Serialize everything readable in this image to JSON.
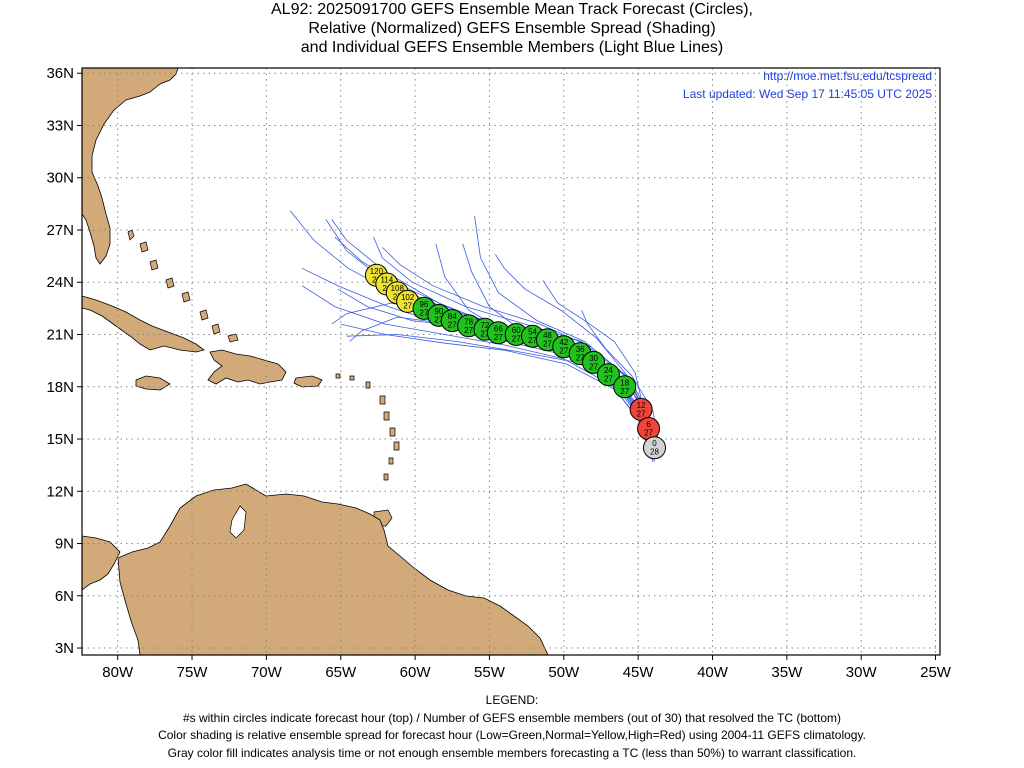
{
  "title": {
    "line1": "AL92: 2025091700 GEFS Ensemble Mean Track Forecast (Circles),",
    "line2": "Relative (Normalized) GEFS Ensemble Spread (Shading)",
    "line3": "and Individual GEFS Ensemble Members (Light Blue Lines)"
  },
  "credit": {
    "url": "http://moe.met.fsu.edu/tcspread",
    "updated": "Last updated: Wed Sep 17 11:45:05 UTC 2025"
  },
  "axes": {
    "lon_labels": [
      "80W",
      "75W",
      "70W",
      "65W",
      "60W",
      "55W",
      "50W",
      "45W",
      "40W",
      "35W",
      "30W",
      "25W"
    ],
    "lon_values": [
      -80,
      -75,
      -70,
      -65,
      -60,
      -55,
      -50,
      -45,
      -40,
      -35,
      -30,
      -25
    ],
    "lat_labels": [
      "36N",
      "33N",
      "30N",
      "27N",
      "24N",
      "21N",
      "18N",
      "15N",
      "12N",
      "9N",
      "6N",
      "3N"
    ],
    "lat_values": [
      36,
      33,
      30,
      27,
      24,
      21,
      18,
      15,
      12,
      9,
      6,
      3
    ],
    "lon_range": [
      -82.4,
      -24.7
    ],
    "lat_range": [
      2.6,
      36.3
    ],
    "grid": "dotted"
  },
  "colors": {
    "land": "#d2aa7a",
    "coast": "#000000",
    "member_line": "#3a5de0",
    "low": "#22c21e",
    "normal": "#ece333",
    "high": "#ef4538",
    "analysis": "#d3d3d3",
    "credit": "#1f3fd8"
  },
  "chart_data": {
    "type": "scatter",
    "track": [
      {
        "hour": "0",
        "members": "28",
        "lon": -43.9,
        "lat": 14.5,
        "spread": "analysis"
      },
      {
        "hour": "6",
        "members": "27",
        "lon": -44.3,
        "lat": 15.6,
        "spread": "high"
      },
      {
        "hour": "12",
        "members": "27",
        "lon": -44.8,
        "lat": 16.7,
        "spread": "high"
      },
      {
        "hour": "18",
        "members": "27",
        "lon": -45.9,
        "lat": 18.0,
        "spread": "low"
      },
      {
        "hour": "24",
        "members": "27",
        "lon": -47.0,
        "lat": 18.7,
        "spread": "low"
      },
      {
        "hour": "30",
        "members": "27",
        "lon": -48.0,
        "lat": 19.4,
        "spread": "low"
      },
      {
        "hour": "36",
        "members": "27",
        "lon": -48.9,
        "lat": 19.9,
        "spread": "low"
      },
      {
        "hour": "42",
        "members": "27",
        "lon": -50.0,
        "lat": 20.3,
        "spread": "low"
      },
      {
        "hour": "48",
        "members": "27",
        "lon": -51.1,
        "lat": 20.7,
        "spread": "low"
      },
      {
        "hour": "54",
        "members": "27",
        "lon": -52.1,
        "lat": 20.9,
        "spread": "low"
      },
      {
        "hour": "60",
        "members": "27",
        "lon": -53.2,
        "lat": 21.0,
        "spread": "low"
      },
      {
        "hour": "66",
        "members": "27",
        "lon": -54.4,
        "lat": 21.1,
        "spread": "low"
      },
      {
        "hour": "72",
        "members": "27",
        "lon": -55.3,
        "lat": 21.3,
        "spread": "low"
      },
      {
        "hour": "78",
        "members": "27",
        "lon": -56.4,
        "lat": 21.5,
        "spread": "low"
      },
      {
        "hour": "84",
        "members": "27",
        "lon": -57.5,
        "lat": 21.8,
        "spread": "low"
      },
      {
        "hour": "90",
        "members": "27",
        "lon": -58.4,
        "lat": 22.1,
        "spread": "low"
      },
      {
        "hour": "96",
        "members": "27",
        "lon": -59.4,
        "lat": 22.5,
        "spread": "low"
      },
      {
        "hour": "102",
        "members": "27",
        "lon": -60.5,
        "lat": 22.9,
        "spread": "normal"
      },
      {
        "hour": "108",
        "members": "27",
        "lon": -61.2,
        "lat": 23.4,
        "spread": "normal"
      },
      {
        "hour": "114",
        "members": "26",
        "lon": -61.9,
        "lat": 23.9,
        "spread": "normal"
      },
      {
        "hour": "120",
        "members": "26",
        "lon": -62.6,
        "lat": 24.4,
        "spread": "normal"
      }
    ],
    "members": [
      [
        [
          -43.9,
          13.7
        ],
        [
          -44.6,
          16.0
        ],
        [
          -46.1,
          18.0
        ],
        [
          -49.0,
          19.8
        ],
        [
          -53.0,
          20.8
        ],
        [
          -57.0,
          21.8
        ],
        [
          -61.0,
          23.2
        ],
        [
          -64.5,
          24.8
        ],
        [
          -66.8,
          26.4
        ],
        [
          -68.4,
          28.1
        ]
      ],
      [
        [
          -43.6,
          14.0
        ],
        [
          -44.3,
          16.4
        ],
        [
          -45.9,
          18.3
        ],
        [
          -48.6,
          20.0
        ],
        [
          -52.6,
          21.0
        ],
        [
          -56.6,
          22.1
        ],
        [
          -60.4,
          23.6
        ],
        [
          -63.6,
          25.2
        ],
        [
          -65.4,
          26.6
        ]
      ],
      [
        [
          -44.1,
          13.9
        ],
        [
          -45.0,
          16.2
        ],
        [
          -46.8,
          18.1
        ],
        [
          -50.0,
          19.6
        ],
        [
          -54.0,
          20.4
        ],
        [
          -58.0,
          21.0
        ],
        [
          -62.0,
          21.6
        ],
        [
          -65.4,
          22.6
        ],
        [
          -67.6,
          23.8
        ]
      ],
      [
        [
          -43.8,
          14.2
        ],
        [
          -44.5,
          16.3
        ],
        [
          -46.0,
          18.0
        ],
        [
          -49.1,
          19.4
        ],
        [
          -53.0,
          20.0
        ],
        [
          -57.2,
          20.6
        ],
        [
          -61.2,
          21.0
        ],
        [
          -64.6,
          20.9
        ]
      ],
      [
        [
          -44.0,
          13.8
        ],
        [
          -44.8,
          16.1
        ],
        [
          -46.4,
          18.2
        ],
        [
          -49.6,
          20.2
        ],
        [
          -52.8,
          21.2
        ],
        [
          -55.0,
          22.6
        ],
        [
          -56.2,
          24.6
        ],
        [
          -56.8,
          26.2
        ]
      ],
      [
        [
          -43.7,
          14.1
        ],
        [
          -44.4,
          16.5
        ],
        [
          -45.8,
          18.6
        ],
        [
          -48.6,
          20.6
        ],
        [
          -51.8,
          21.8
        ],
        [
          -54.4,
          23.4
        ],
        [
          -55.6,
          25.4
        ],
        [
          -56.0,
          27.8
        ]
      ],
      [
        [
          -43.9,
          14.0
        ],
        [
          -44.7,
          16.3
        ],
        [
          -46.5,
          18.3
        ],
        [
          -49.8,
          20.0
        ],
        [
          -53.6,
          21.0
        ],
        [
          -56.4,
          22.4
        ],
        [
          -58.0,
          24.3
        ],
        [
          -58.6,
          26.2
        ]
      ],
      [
        [
          -44.2,
          14.3
        ],
        [
          -44.6,
          16.6
        ],
        [
          -45.2,
          18.8
        ],
        [
          -46.6,
          20.6
        ],
        [
          -48.6,
          21.8
        ],
        [
          -50.4,
          22.8
        ],
        [
          -51.4,
          24.1
        ]
      ],
      [
        [
          -43.5,
          14.2
        ],
        [
          -44.0,
          16.6
        ],
        [
          -45.4,
          18.6
        ],
        [
          -47.2,
          20.2
        ],
        [
          -48.4,
          21.6
        ],
        [
          -48.8,
          22.4
        ]
      ],
      [
        [
          -43.8,
          14.0
        ],
        [
          -44.6,
          16.3
        ],
        [
          -46.3,
          18.2
        ],
        [
          -49.4,
          19.9
        ],
        [
          -53.4,
          21.0
        ],
        [
          -57.4,
          22.0
        ],
        [
          -61.6,
          22.8
        ],
        [
          -64.6,
          22.2
        ],
        [
          -65.6,
          21.6
        ]
      ],
      [
        [
          -44.0,
          14.1
        ],
        [
          -44.9,
          16.4
        ],
        [
          -46.7,
          18.4
        ],
        [
          -50.0,
          20.2
        ],
        [
          -54.2,
          21.4
        ],
        [
          -58.4,
          22.8
        ],
        [
          -62.0,
          24.6
        ],
        [
          -64.6,
          26.4
        ],
        [
          -65.6,
          27.6
        ]
      ],
      [
        [
          -43.9,
          13.9
        ],
        [
          -44.5,
          16.2
        ],
        [
          -46.2,
          18.1
        ],
        [
          -49.4,
          19.7
        ],
        [
          -53.4,
          20.8
        ],
        [
          -57.6,
          21.6
        ],
        [
          -61.2,
          22.0
        ],
        [
          -63.6,
          21.2
        ],
        [
          -64.4,
          20.6
        ]
      ],
      [
        [
          -44.1,
          14.0
        ],
        [
          -44.9,
          16.2
        ],
        [
          -46.6,
          18.2
        ],
        [
          -49.8,
          19.8
        ],
        [
          -53.8,
          20.6
        ],
        [
          -57.8,
          21.5
        ],
        [
          -61.8,
          22.6
        ],
        [
          -65.2,
          23.8
        ],
        [
          -67.6,
          24.8
        ]
      ],
      [
        [
          -43.7,
          14.3
        ],
        [
          -44.3,
          16.5
        ],
        [
          -45.6,
          18.5
        ],
        [
          -48.2,
          20.3
        ],
        [
          -51.6,
          21.6
        ],
        [
          -55.4,
          22.6
        ],
        [
          -58.8,
          23.8
        ],
        [
          -61.0,
          25.0
        ],
        [
          -62.2,
          26.0
        ]
      ],
      [
        [
          -43.8,
          14.1
        ],
        [
          -44.6,
          16.4
        ],
        [
          -46.3,
          18.4
        ],
        [
          -49.6,
          20.3
        ],
        [
          -53.6,
          21.4
        ],
        [
          -57.6,
          22.4
        ],
        [
          -61.6,
          23.8
        ],
        [
          -64.6,
          25.8
        ],
        [
          -66.0,
          27.6
        ]
      ],
      [
        [
          -44.0,
          13.7
        ],
        [
          -44.8,
          15.9
        ],
        [
          -46.5,
          17.8
        ],
        [
          -49.8,
          19.3
        ],
        [
          -54.0,
          20.1
        ],
        [
          -58.0,
          20.5
        ],
        [
          -62.0,
          21.0
        ],
        [
          -65.0,
          21.6
        ]
      ],
      [
        [
          -43.9,
          14.2
        ],
        [
          -44.5,
          16.4
        ],
        [
          -45.7,
          18.6
        ],
        [
          -47.8,
          20.8
        ],
        [
          -50.2,
          22.4
        ],
        [
          -52.6,
          23.6
        ],
        [
          -54.0,
          24.8
        ],
        [
          -54.6,
          25.6
        ]
      ],
      [
        [
          -43.6,
          14.0
        ],
        [
          -44.2,
          16.2
        ],
        [
          -45.6,
          18.2
        ],
        [
          -48.4,
          19.9
        ],
        [
          -52.2,
          20.8
        ],
        [
          -56.2,
          21.4
        ],
        [
          -60.2,
          21.8
        ],
        [
          -63.2,
          22.6
        ],
        [
          -65.2,
          23.6
        ]
      ],
      [
        [
          -44.1,
          14.3
        ],
        [
          -44.7,
          16.6
        ],
        [
          -46.0,
          18.7
        ],
        [
          -48.8,
          20.6
        ],
        [
          -52.6,
          21.6
        ],
        [
          -56.6,
          22.6
        ],
        [
          -60.2,
          24.0
        ],
        [
          -62.2,
          25.4
        ],
        [
          -62.8,
          26.6
        ]
      ]
    ]
  },
  "legend": {
    "heading": "LEGEND:",
    "line1": "#s within circles indicate forecast hour (top) / Number of GEFS ensemble members (out of 30) that resolved the TC (bottom)",
    "line2": "Color shading is relative ensemble spread for forecast hour (Low=Green,Normal=Yellow,High=Red) using 2004-11 GEFS climatology.",
    "line3": "Gray color fill indicates analysis time or not enough ensemble members forecasting a TC (less than 50%) to warrant classification."
  }
}
